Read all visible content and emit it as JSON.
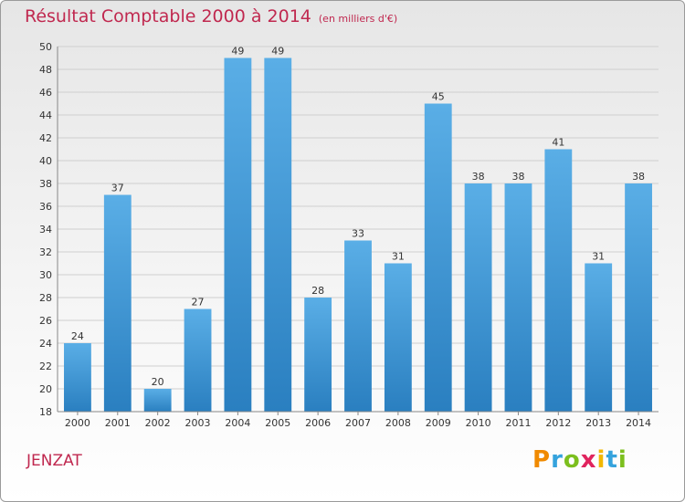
{
  "header": {
    "title": "Résultat Comptable 2000 à 2014",
    "subtitle": "(en milliers d'€)"
  },
  "footer": {
    "commune": "JENZAT",
    "logo": [
      "P",
      "r",
      "o",
      "x",
      "i",
      "t",
      "i"
    ]
  },
  "colors": {
    "title": "#c0284f",
    "bar_top": "#5aaee6",
    "bar_bottom": "#2a7fc0",
    "logo": [
      "#f08a00",
      "#35a3dd",
      "#7cbf1e",
      "#e0245e",
      "#f2b800",
      "#35a3dd",
      "#7cbf1e"
    ]
  },
  "chart_data": {
    "type": "bar",
    "categories": [
      "2000",
      "2001",
      "2002",
      "2003",
      "2004",
      "2005",
      "2006",
      "2007",
      "2008",
      "2009",
      "2010",
      "2011",
      "2012",
      "2013",
      "2014"
    ],
    "values": [
      24,
      37,
      20,
      27,
      49,
      49,
      28,
      33,
      31,
      45,
      38,
      38,
      41,
      31,
      38
    ],
    "ylim": [
      18,
      50
    ],
    "yticks": [
      18,
      20,
      22,
      24,
      26,
      28,
      30,
      32,
      34,
      36,
      38,
      40,
      42,
      44,
      46,
      48,
      50
    ],
    "data_labels": [
      "24",
      "37",
      "20",
      "27",
      "49",
      "49",
      "28",
      "33",
      "31",
      "45",
      "38",
      "38",
      "41",
      "31",
      "38"
    ],
    "grid": true,
    "legend": "none"
  }
}
